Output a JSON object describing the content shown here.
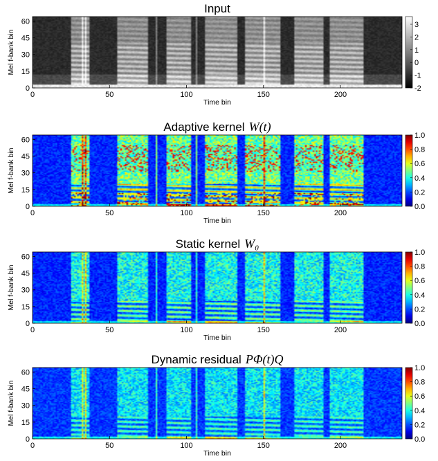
{
  "chart_data": [
    {
      "type": "heatmap",
      "title": "Input",
      "title_math": "",
      "xlabel": "Time bin",
      "ylabel": "Mel f-bank bin",
      "x_range": [
        0,
        240
      ],
      "y_range": [
        0,
        64
      ],
      "x_ticks": [
        "0",
        "50",
        "100",
        "150",
        "200"
      ],
      "y_ticks": [
        "0",
        "15",
        "30",
        "45",
        "60"
      ],
      "colorbar_ticks": [
        "3",
        "2",
        "1",
        "0",
        "-1",
        "-2"
      ],
      "colorbar_range": [
        -2,
        3.6
      ],
      "colormap": "gray",
      "speech_segments_timebins": [
        [
          25,
          36
        ],
        [
          55,
          74
        ],
        [
          87,
          102
        ],
        [
          112,
          132
        ],
        [
          138,
          160
        ],
        [
          170,
          188
        ],
        [
          193,
          214
        ]
      ]
    },
    {
      "type": "heatmap",
      "title": "Adaptive kernel",
      "title_math": "W(t)",
      "xlabel": "Time bin",
      "ylabel": "Mel f-bank bin",
      "x_range": [
        0,
        240
      ],
      "y_range": [
        0,
        64
      ],
      "x_ticks": [
        "0",
        "50",
        "100",
        "150",
        "200"
      ],
      "y_ticks": [
        "0",
        "15",
        "30",
        "45",
        "60"
      ],
      "colorbar_ticks": [
        "1.0",
        "0.8",
        "0.6",
        "0.4",
        "0.2",
        "0.0"
      ],
      "colorbar_range": [
        0,
        1
      ],
      "colormap": "jet"
    },
    {
      "type": "heatmap",
      "title": "Static kernel",
      "title_math": "W₀",
      "xlabel": "Time bin",
      "ylabel": "Mel f-bank bin",
      "x_range": [
        0,
        240
      ],
      "y_range": [
        0,
        64
      ],
      "x_ticks": [
        "0",
        "50",
        "100",
        "150",
        "200"
      ],
      "y_ticks": [
        "0",
        "15",
        "30",
        "45",
        "60"
      ],
      "colorbar_ticks": [
        "1.0",
        "0.8",
        "0.6",
        "0.4",
        "0.2",
        "0.0"
      ],
      "colorbar_range": [
        0,
        1
      ],
      "colormap": "jet"
    },
    {
      "type": "heatmap",
      "title": "Dynamic residual",
      "title_math": "PΦ(t)Q",
      "xlabel": "Time bin",
      "ylabel": "Mel f-bank bin",
      "x_range": [
        0,
        240
      ],
      "y_range": [
        0,
        64
      ],
      "x_ticks": [
        "0",
        "50",
        "100",
        "150",
        "200"
      ],
      "y_ticks": [
        "0",
        "15",
        "30",
        "45",
        "60"
      ],
      "colorbar_ticks": [
        "1.0",
        "0.8",
        "0.6",
        "0.4",
        "0.2",
        "0.0"
      ],
      "colorbar_range": [
        0,
        1
      ],
      "colormap": "jet"
    }
  ]
}
